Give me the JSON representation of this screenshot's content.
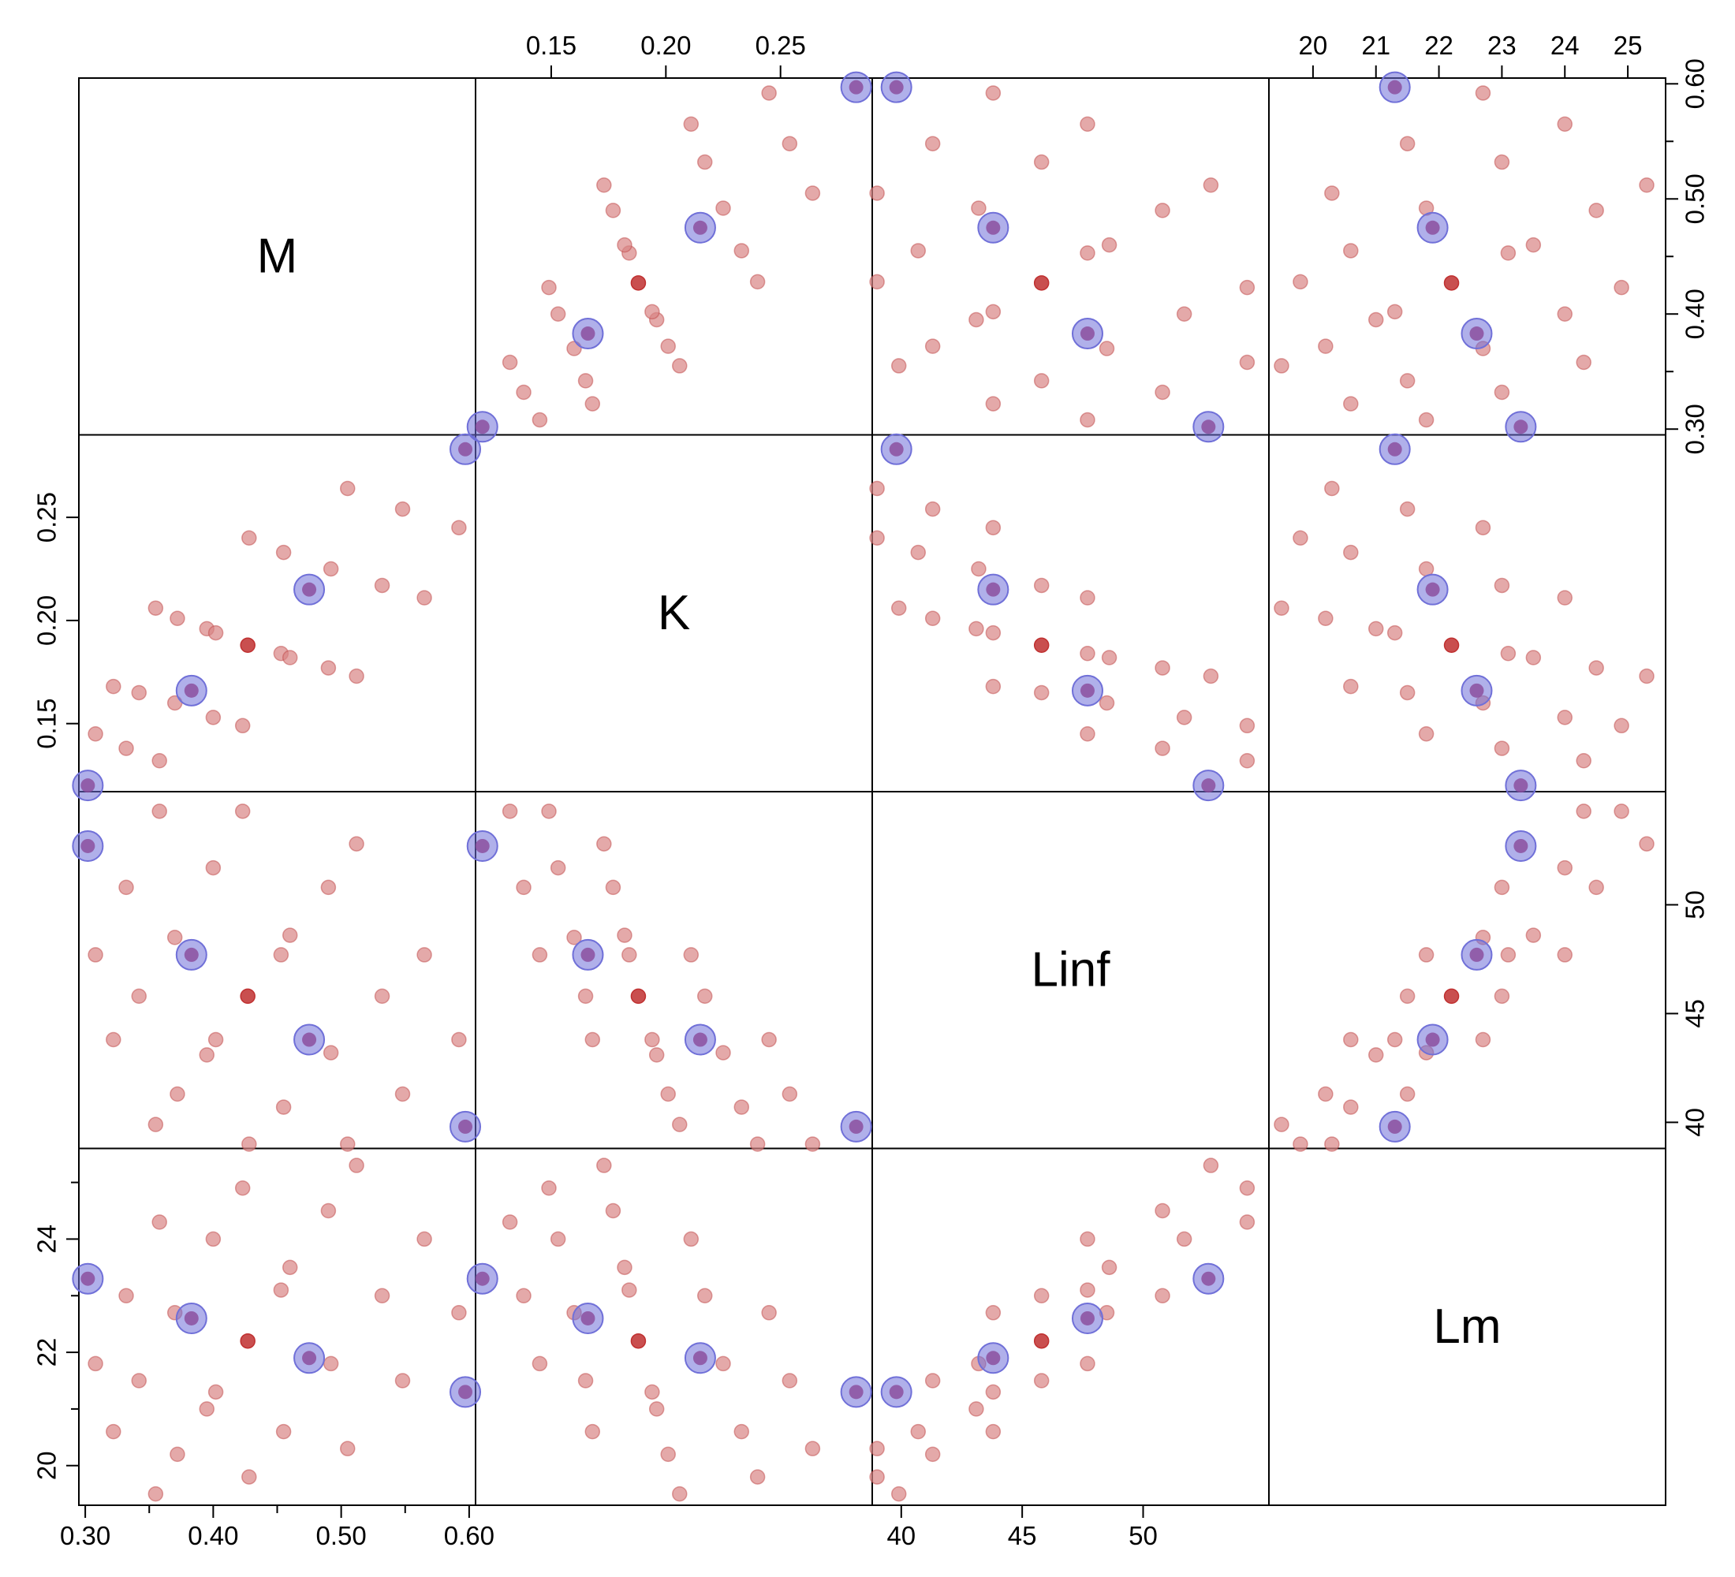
{
  "chart_data": {
    "type": "scatter",
    "subtype": "scatterplot-matrix",
    "title": "",
    "variables": [
      {
        "name": "M",
        "range": [
          0.295,
          0.605
        ],
        "ticks": [
          0.3,
          0.4,
          0.5,
          0.6
        ],
        "tick_labels": [
          "0.30",
          "0.40",
          "0.50",
          "0.60"
        ],
        "minor_ticks": [
          0.35,
          0.45,
          0.55
        ]
      },
      {
        "name": "K",
        "range": [
          0.117,
          0.29
        ],
        "ticks": [
          0.15,
          0.2,
          0.25
        ],
        "tick_labels": [
          "0.15",
          "0.20",
          "0.25"
        ],
        "minor_ticks": []
      },
      {
        "name": "Linf",
        "range": [
          38.8,
          55.2
        ],
        "ticks": [
          40,
          45,
          50
        ],
        "tick_labels": [
          "40",
          "45",
          "50"
        ],
        "minor_ticks": []
      },
      {
        "name": "Lm",
        "range": [
          19.3,
          25.6
        ],
        "ticks": [
          20,
          21,
          22,
          23,
          24,
          25
        ],
        "tick_labels": [
          "20",
          "21",
          "22",
          "23",
          "24",
          "25"
        ],
        "minor_ticks": []
      }
    ],
    "left_axis_ticks": {
      "K": {
        "ticks": [
          0.15,
          0.2,
          0.25
        ],
        "minor": []
      },
      "Linf": {
        "ticks": [
          40,
          45,
          50
        ],
        "minor": []
      },
      "Lm": {
        "ticks": [
          20,
          22,
          24
        ],
        "minor": [
          21,
          23,
          25
        ]
      }
    },
    "right_axis_ticks": {
      "M": {
        "ticks": [
          0.3,
          0.4,
          0.5,
          0.6
        ],
        "minor": [
          0.35,
          0.45,
          0.55
        ]
      },
      "K": {
        "ticks": [
          0.15,
          0.2,
          0.25
        ],
        "minor": []
      },
      "Linf": {
        "ticks": [
          40,
          45,
          50
        ],
        "minor": []
      }
    },
    "points": [
      [
        0.308,
        0.145,
        47.7,
        21.8
      ],
      [
        0.322,
        0.168,
        43.8,
        20.6
      ],
      [
        0.332,
        0.138,
        50.8,
        23.0
      ],
      [
        0.342,
        0.165,
        45.8,
        21.5
      ],
      [
        0.355,
        0.206,
        39.9,
        19.5
      ],
      [
        0.358,
        0.132,
        54.3,
        24.3
      ],
      [
        0.37,
        0.16,
        48.5,
        22.7
      ],
      [
        0.372,
        0.201,
        41.3,
        20.2
      ],
      [
        0.395,
        0.196,
        43.1,
        21.0
      ],
      [
        0.4,
        0.153,
        51.7,
        24.0
      ],
      [
        0.402,
        0.194,
        43.8,
        21.3
      ],
      [
        0.423,
        0.149,
        54.3,
        24.9
      ],
      [
        0.428,
        0.24,
        39.0,
        19.8
      ],
      [
        0.453,
        0.184,
        47.7,
        23.1
      ],
      [
        0.455,
        0.233,
        40.7,
        20.6
      ],
      [
        0.46,
        0.182,
        48.6,
        23.5
      ],
      [
        0.49,
        0.177,
        50.8,
        24.5
      ],
      [
        0.492,
        0.225,
        43.2,
        21.8
      ],
      [
        0.505,
        0.264,
        39.0,
        20.3
      ],
      [
        0.512,
        0.173,
        52.8,
        25.3
      ],
      [
        0.532,
        0.217,
        45.8,
        23.0
      ],
      [
        0.548,
        0.254,
        41.3,
        21.5
      ],
      [
        0.565,
        0.211,
        47.7,
        24.0
      ],
      [
        0.592,
        0.245,
        43.8,
        22.7
      ]
    ],
    "dark_point": [
      0.427,
      0.188,
      45.8,
      22.2
    ],
    "highlighted_points": [
      [
        0.302,
        0.12,
        52.7,
        23.3
      ],
      [
        0.383,
        0.166,
        47.7,
        22.6
      ],
      [
        0.475,
        0.215,
        43.8,
        21.9
      ],
      [
        0.597,
        0.283,
        39.8,
        21.3
      ]
    ],
    "colors": {
      "point": "#d98585",
      "point_edge": "#c04848",
      "dark_point": "#c03030",
      "highlight": "#7070d8",
      "frame": "#000000"
    }
  }
}
